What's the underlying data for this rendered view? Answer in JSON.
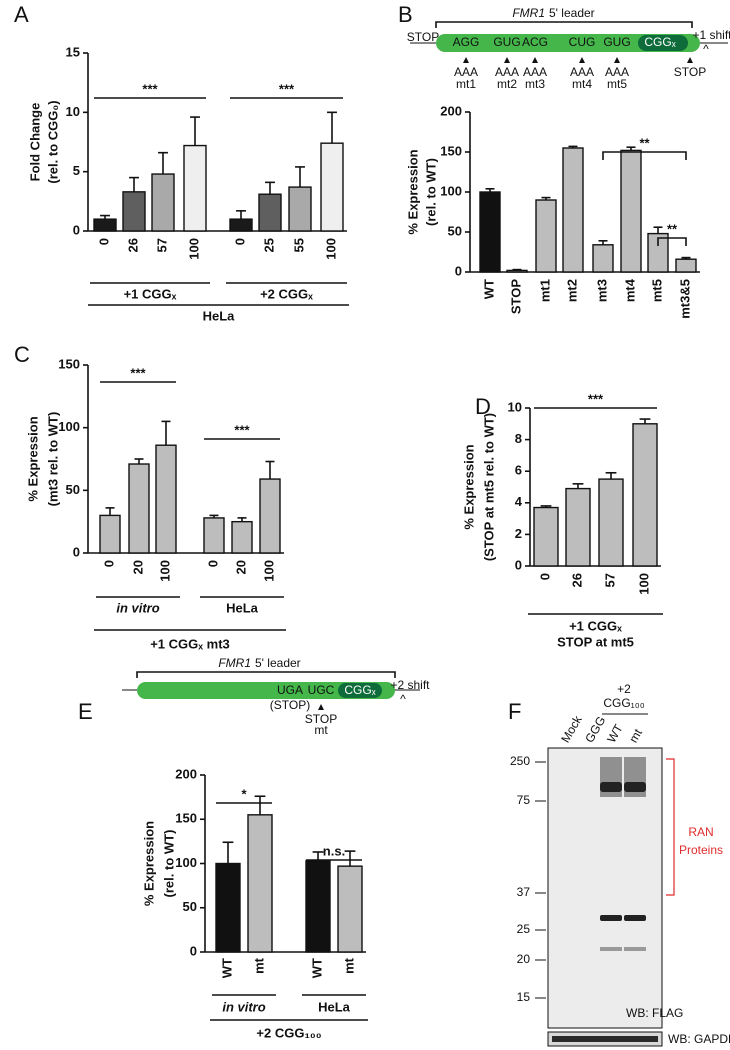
{
  "panels": [
    "A",
    "B",
    "C",
    "D",
    "E",
    "F"
  ],
  "chart_data": [
    {
      "type": "bar",
      "ylabel": [
        "Fold Change",
        "(rel. to CGG₀)"
      ],
      "categories": [
        "0",
        "26",
        "57",
        "100",
        "0",
        "25",
        "55",
        "100"
      ],
      "values": [
        1.0,
        3.3,
        4.8,
        7.2,
        1.0,
        3.1,
        3.7,
        7.4
      ],
      "errors": [
        0.3,
        1.2,
        1.8,
        2.4,
        0.7,
        1.0,
        1.7,
        2.6
      ],
      "colors": [
        "#1a1a1a",
        "#5f5f5f",
        "#a9a9a9",
        "#efefef",
        "#1a1a1a",
        "#5f5f5f",
        "#a9a9a9",
        "#efefef"
      ],
      "ylim": [
        0,
        15
      ],
      "yticks": [
        0,
        5,
        10,
        15
      ],
      "groups": [
        "+1 CGGₓ",
        "+2 CGGₓ"
      ],
      "group_label": [
        "HeLa"
      ],
      "annotations": [
        "***",
        "***"
      ]
    },
    {
      "type": "bar",
      "ylabel": [
        "% Expression",
        "(rel. to WT)"
      ],
      "categories": [
        "WT",
        "STOP",
        "mt1",
        "mt2",
        "mt3",
        "mt4",
        "mt5",
        "mt3&5"
      ],
      "values": [
        100,
        2,
        90,
        155,
        34,
        152,
        48,
        16
      ],
      "errors": [
        4,
        1,
        3,
        2,
        5,
        4,
        8,
        2
      ],
      "colors": [
        "#111111",
        "#bdbdbd",
        "#bdbdbd",
        "#bdbdbd",
        "#bdbdbd",
        "#bdbdbd",
        "#bdbdbd",
        "#bdbdbd"
      ],
      "ylim": [
        0,
        200
      ],
      "yticks": [
        0,
        50,
        100,
        150,
        200
      ],
      "annotations": [
        "**",
        "**"
      ]
    },
    {
      "type": "bar",
      "ylabel": [
        "% Expression",
        "(mt3 rel. to WT)"
      ],
      "categories": [
        "0",
        "20",
        "100",
        "0",
        "20",
        "100"
      ],
      "values": [
        30,
        71,
        86,
        28,
        25,
        59
      ],
      "errors": [
        6,
        4,
        19,
        2,
        3,
        14
      ],
      "colors": [
        "#bdbdbd",
        "#bdbdbd",
        "#bdbdbd",
        "#bdbdbd",
        "#bdbdbd",
        "#bdbdbd"
      ],
      "ylim": [
        0,
        150
      ],
      "yticks": [
        0,
        50,
        100,
        150
      ],
      "groups": [
        "in vitro",
        "HeLa"
      ],
      "group_label": [
        "+1 CGGₓ mt3"
      ],
      "annotations": [
        "***",
        "***"
      ]
    },
    {
      "type": "bar",
      "ylabel": [
        "% Expression",
        "(STOP at mt5 rel. to WT)"
      ],
      "categories": [
        "0",
        "26",
        "57",
        "100"
      ],
      "values": [
        3.7,
        4.9,
        5.5,
        9.0
      ],
      "errors": [
        0.1,
        0.3,
        0.4,
        0.3
      ],
      "colors": [
        "#bdbdbd",
        "#bdbdbd",
        "#bdbdbd",
        "#bdbdbd"
      ],
      "ylim": [
        0,
        10
      ],
      "yticks": [
        0,
        2,
        4,
        6,
        8,
        10
      ],
      "group_label": [
        "+1 CGGₓ",
        "STOP at mt5"
      ],
      "annotations": [
        "***"
      ]
    },
    {
      "type": "bar",
      "ylabel": [
        "% Expression",
        "(rel. to WT)"
      ],
      "categories": [
        "WT",
        "mt",
        "WT",
        "mt"
      ],
      "values": [
        100,
        155,
        103,
        97
      ],
      "errors": [
        24,
        21,
        10,
        17
      ],
      "colors": [
        "#111111",
        "#bdbdbd",
        "#111111",
        "#bdbdbd"
      ],
      "ylim": [
        0,
        200
      ],
      "yticks": [
        0,
        50,
        100,
        150,
        200
      ],
      "groups": [
        "in vitro",
        "HeLa"
      ],
      "group_label": [
        "+2 CGG₁₀₀"
      ],
      "annotations": [
        "*",
        "n.s."
      ]
    }
  ],
  "diagram_b": {
    "gene": "FMR1",
    "title": "5' leader",
    "stop_left": "STOP",
    "codons": [
      "AGG",
      "GUG",
      "ACG",
      "CUG",
      "GUG"
    ],
    "repeat": "CGGₓ",
    "mutants": [
      {
        "codon": "AAA",
        "label": "mt1"
      },
      {
        "codon": "AAA",
        "label": "mt2"
      },
      {
        "codon": "AAA",
        "label": "mt3"
      },
      {
        "codon": "AAA",
        "label": "mt4"
      },
      {
        "codon": "AAA",
        "label": "mt5"
      }
    ],
    "shift": "+1 shift",
    "caret": "^",
    "stop_right": "STOP"
  },
  "diagram_e": {
    "gene": "FMR1",
    "title": "5' leader",
    "codon1": "UGA",
    "codon1_note": "(STOP)",
    "codon2": "UGC",
    "repeat": "CGGₓ",
    "shift": "+2 shift",
    "caret": "^",
    "stop": "STOP",
    "mutant": "mt"
  },
  "blot_f": {
    "lanes": [
      "Mock",
      "GGG",
      "WT",
      "mt"
    ],
    "group": [
      "+2",
      "CGG₁₀₀"
    ],
    "markers": [
      250,
      75,
      37,
      25,
      20,
      15
    ],
    "bracket_label": [
      "RAN",
      "Proteins"
    ],
    "probes": [
      "WB: FLAG",
      "WB: GAPDH"
    ]
  }
}
